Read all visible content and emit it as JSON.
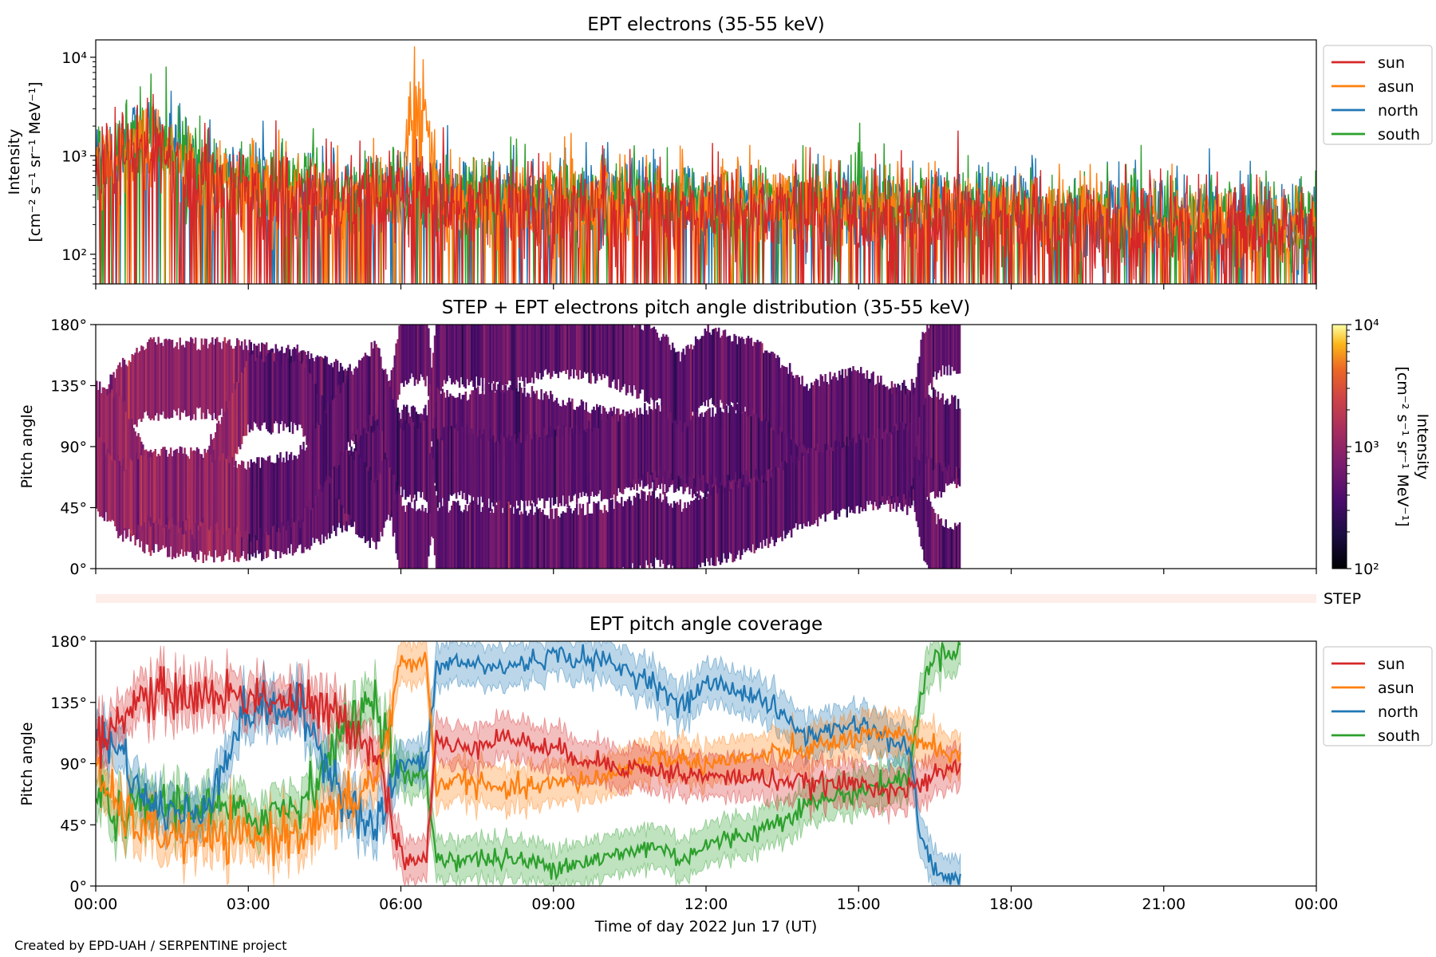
{
  "colors": {
    "sun": "#d62728",
    "asun": "#ff7f0e",
    "north": "#1f77b4",
    "south": "#2ca02c",
    "step_band": "#fdeee9"
  },
  "chart_data": [
    {
      "type": "line",
      "title": "EPT electrons (35-55 keV)",
      "ylabel": [
        "Intensity",
        "[cm⁻² s⁻¹ sr⁻¹ MeV⁻¹]"
      ],
      "y_scale": "log",
      "ylim": [
        50,
        15000
      ],
      "yticks": [
        {
          "value": 100,
          "label": "10²"
        },
        {
          "value": 1000,
          "label": "10³"
        },
        {
          "value": 10000,
          "label": "10⁴"
        }
      ],
      "xlim_hours": [
        0,
        24
      ],
      "legend": {
        "placement": "right",
        "entries": [
          "sun",
          "asun",
          "north",
          "south"
        ]
      },
      "series": [
        {
          "name": "sun",
          "anchors_h": [
            0,
            0.5,
            1.0,
            1.5,
            2,
            3,
            5,
            6.3,
            8,
            10,
            12,
            15,
            18,
            21,
            24
          ],
          "anchors_v": [
            700,
            900,
            1200,
            900,
            550,
            450,
            380,
            350,
            340,
            320,
            300,
            280,
            240,
            200,
            180
          ],
          "noise": 0.55,
          "dropouts": 0.18
        },
        {
          "name": "asun",
          "anchors_h": [
            0,
            0.5,
            1.0,
            1.5,
            2,
            3,
            5,
            6.0,
            6.35,
            6.7,
            8,
            10,
            12,
            15,
            18,
            21,
            24
          ],
          "anchors_v": [
            800,
            1000,
            1400,
            1000,
            600,
            480,
            400,
            380,
            4500,
            380,
            360,
            340,
            320,
            300,
            260,
            220,
            200
          ],
          "noise": 0.5,
          "dropouts": 0.12
        },
        {
          "name": "north",
          "anchors_h": [
            0,
            0.5,
            1.0,
            1.5,
            2,
            3,
            5,
            8,
            10,
            12,
            15,
            18,
            21,
            24
          ],
          "anchors_v": [
            900,
            1300,
            1700,
            1200,
            700,
            520,
            430,
            380,
            360,
            340,
            320,
            280,
            240,
            220
          ],
          "noise": 0.5,
          "dropouts": 0.1
        },
        {
          "name": "south",
          "anchors_h": [
            0,
            0.5,
            1.0,
            1.5,
            2,
            3,
            5,
            8,
            10,
            12,
            15,
            18,
            21,
            24
          ],
          "anchors_v": [
            850,
            1500,
            2000,
            1300,
            700,
            520,
            420,
            380,
            360,
            340,
            320,
            280,
            240,
            210
          ],
          "noise": 0.5,
          "dropouts": 0.1
        }
      ]
    },
    {
      "type": "heatmap",
      "title": "STEP + EPT electrons pitch angle distribution (35-55 keV)",
      "ylabel": "Pitch angle",
      "ylim": [
        0,
        180
      ],
      "yticks": [
        "0°",
        "45°",
        "90°",
        "135°",
        "180°"
      ],
      "xlim_hours": [
        0,
        24
      ],
      "data_end_hour": 17.0,
      "colorbar": {
        "label": [
          "Intensity",
          "[cm⁻² s⁻¹ sr⁻¹ MeV⁻¹]"
        ],
        "scale": "log",
        "range": [
          100,
          10000
        ],
        "ticks": [
          "10²",
          "10³",
          "10⁴"
        ],
        "colormap": "inferno"
      },
      "step_label": "STEP"
    },
    {
      "type": "line",
      "title": "EPT pitch angle coverage",
      "ylabel": "Pitch angle",
      "ylim": [
        0,
        180
      ],
      "yticks": [
        "0°",
        "45°",
        "90°",
        "135°",
        "180°"
      ],
      "xlim_hours": [
        0,
        24
      ],
      "data_end_hour": 17.0,
      "band_halfwidth_deg": 15,
      "legend": {
        "placement": "right",
        "entries": [
          "sun",
          "asun",
          "north",
          "south"
        ]
      },
      "series": [
        {
          "name": "sun",
          "hours": [
            0,
            0.5,
            1,
            2,
            3,
            4,
            5,
            5.5,
            5.8,
            6.0,
            6.5,
            6.7,
            7,
            8,
            9,
            10,
            11,
            12,
            13,
            14,
            15,
            16,
            17
          ],
          "values": [
            100,
            125,
            140,
            140,
            140,
            135,
            120,
            100,
            60,
            20,
            20,
            110,
            100,
            110,
            100,
            90,
            85,
            80,
            80,
            75,
            75,
            70,
            90
          ]
        },
        {
          "name": "asun",
          "hours": [
            0,
            0.5,
            1,
            2,
            3,
            4,
            5,
            5.5,
            5.8,
            6.0,
            6.5,
            6.7,
            7,
            8,
            9,
            10,
            11,
            12,
            13,
            14,
            15,
            16,
            17
          ],
          "values": [
            80,
            55,
            40,
            35,
            35,
            40,
            60,
            80,
            120,
            165,
            165,
            70,
            80,
            70,
            75,
            80,
            95,
            90,
            95,
            100,
            110,
            110,
            95
          ]
        },
        {
          "name": "north",
          "hours": [
            0,
            0.5,
            1,
            2,
            3,
            4,
            5,
            5.5,
            5.8,
            6.0,
            6.5,
            6.7,
            7,
            8,
            9,
            10,
            11,
            11.5,
            12,
            13,
            14,
            15,
            16,
            16.2,
            16.5,
            17
          ],
          "values": [
            110,
            100,
            60,
            50,
            130,
            130,
            60,
            40,
            70,
            90,
            90,
            160,
            165,
            160,
            170,
            165,
            150,
            130,
            150,
            140,
            110,
            120,
            100,
            40,
            10,
            5
          ]
        },
        {
          "name": "south",
          "hours": [
            0,
            0.5,
            1,
            2,
            3,
            4,
            5,
            5.5,
            5.8,
            6.0,
            6.5,
            6.7,
            7,
            8,
            9,
            10,
            11,
            11.5,
            12,
            13,
            14,
            15,
            16,
            16.2,
            16.5,
            17
          ],
          "values": [
            70,
            50,
            60,
            60,
            50,
            60,
            120,
            140,
            100,
            80,
            80,
            20,
            20,
            20,
            15,
            20,
            30,
            20,
            30,
            40,
            60,
            70,
            80,
            140,
            170,
            175
          ]
        }
      ]
    }
  ],
  "x_axis": {
    "ticks": [
      "00:00",
      "03:00",
      "06:00",
      "09:00",
      "12:00",
      "15:00",
      "18:00",
      "21:00",
      "00:00"
    ],
    "label": "Time of day 2022 Jun 17 (UT)"
  },
  "credit": "Created by EPD-UAH / SERPENTINE project"
}
